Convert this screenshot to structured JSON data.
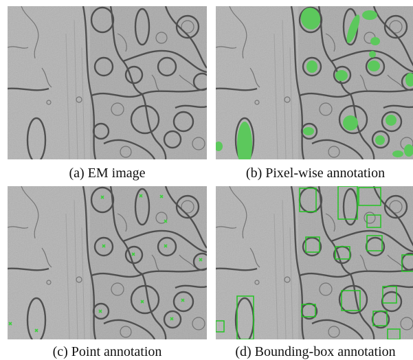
{
  "figure": {
    "captions": {
      "a": "(a) EM image",
      "b": "(b) Pixel-wise annotation",
      "c": "(c) Point annotation",
      "d": "(d) Bounding-box annotation"
    },
    "colors": {
      "tissue": "#a9a9a9",
      "membrane": "#3f3f3f",
      "mitochondria_fill": "#5cc85c",
      "point_marker": "#3ccf3c",
      "bbox_stroke": "#22c422"
    }
  }
}
